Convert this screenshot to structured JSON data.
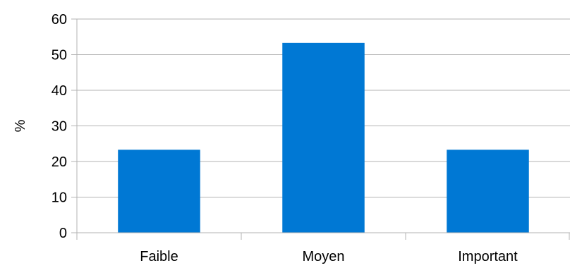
{
  "chart_data": {
    "type": "bar",
    "categories": [
      "Faible",
      "Moyen",
      "Important"
    ],
    "values": [
      23.3,
      53.3,
      23.3
    ],
    "ylabel": "%",
    "xlabel": "",
    "ylim": [
      0,
      60
    ],
    "yticks": [
      0,
      10,
      20,
      30,
      40,
      50,
      60
    ],
    "grid": true,
    "bar_color": "#0078d4",
    "grid_color": "#b3b3b3"
  }
}
